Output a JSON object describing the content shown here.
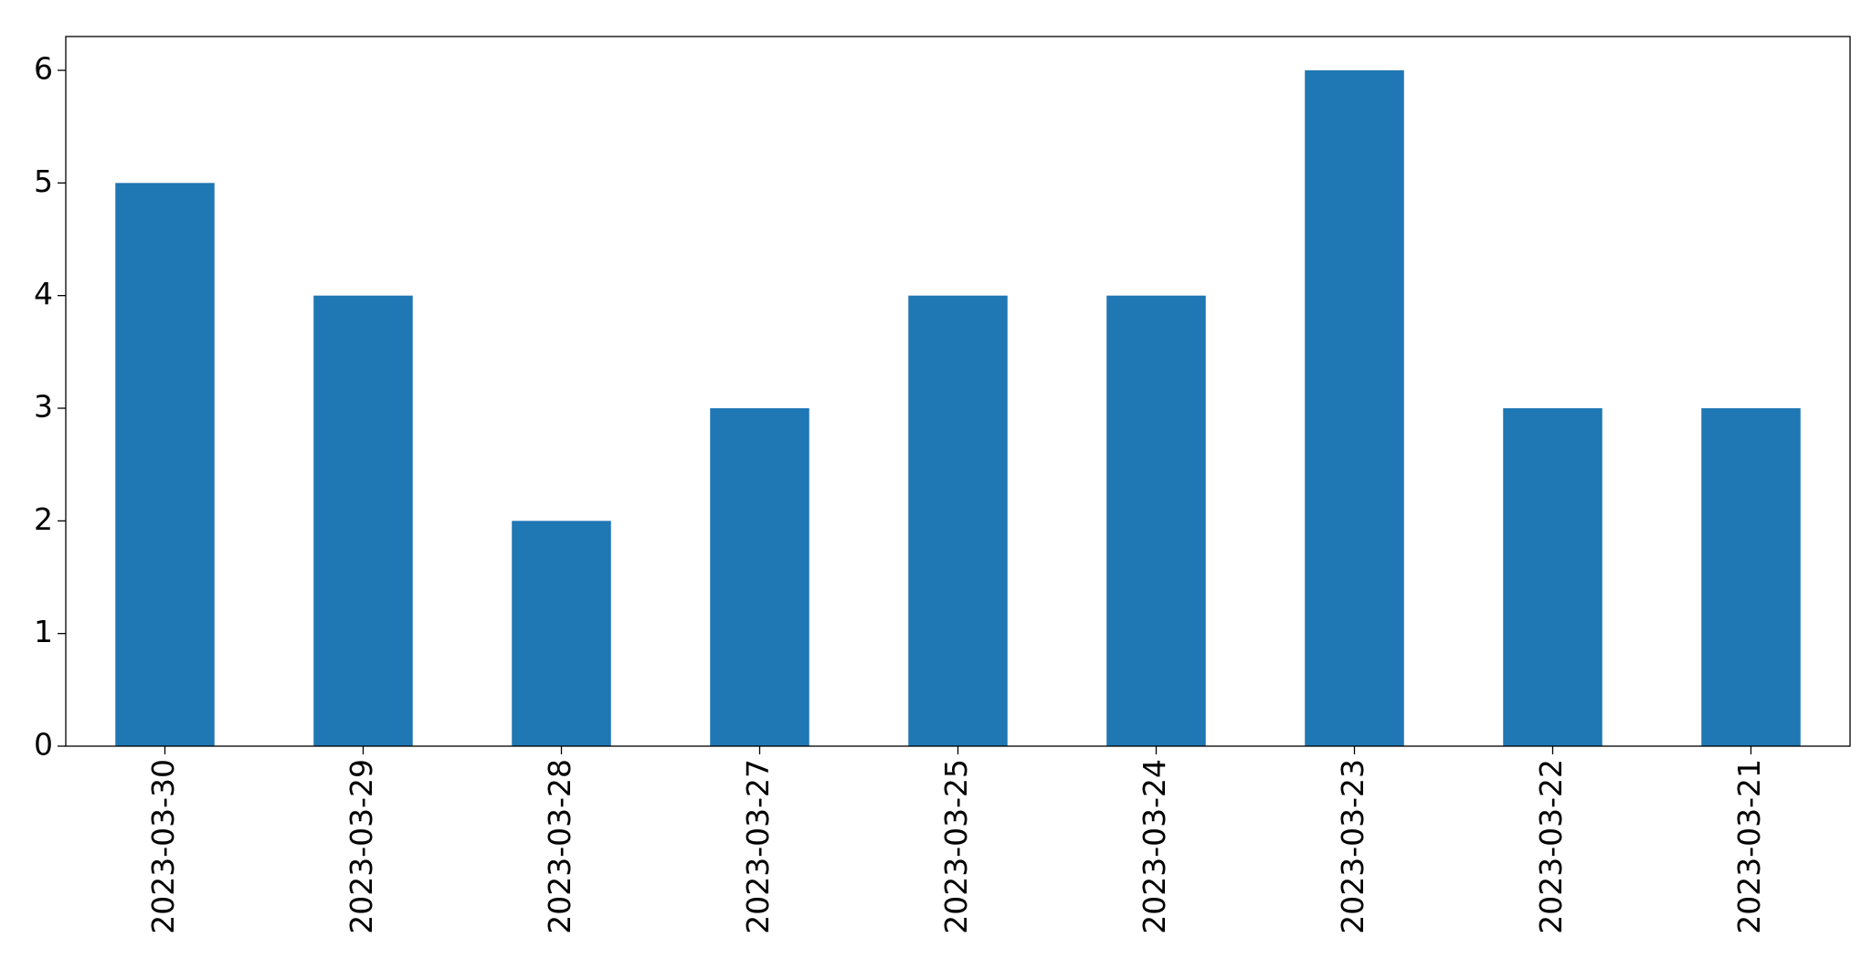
{
  "chart_data": {
    "type": "bar",
    "categories": [
      "2023-03-30",
      "2023-03-29",
      "2023-03-28",
      "2023-03-27",
      "2023-03-25",
      "2023-03-24",
      "2023-03-23",
      "2023-03-22",
      "2023-03-21"
    ],
    "values": [
      5,
      4,
      2,
      3,
      4,
      4,
      6,
      3,
      3
    ],
    "color": "#1f77b4",
    "ylim": [
      0,
      6.3
    ],
    "yticks": [
      0,
      1,
      2,
      3,
      4,
      5,
      6
    ],
    "grid": false
  }
}
